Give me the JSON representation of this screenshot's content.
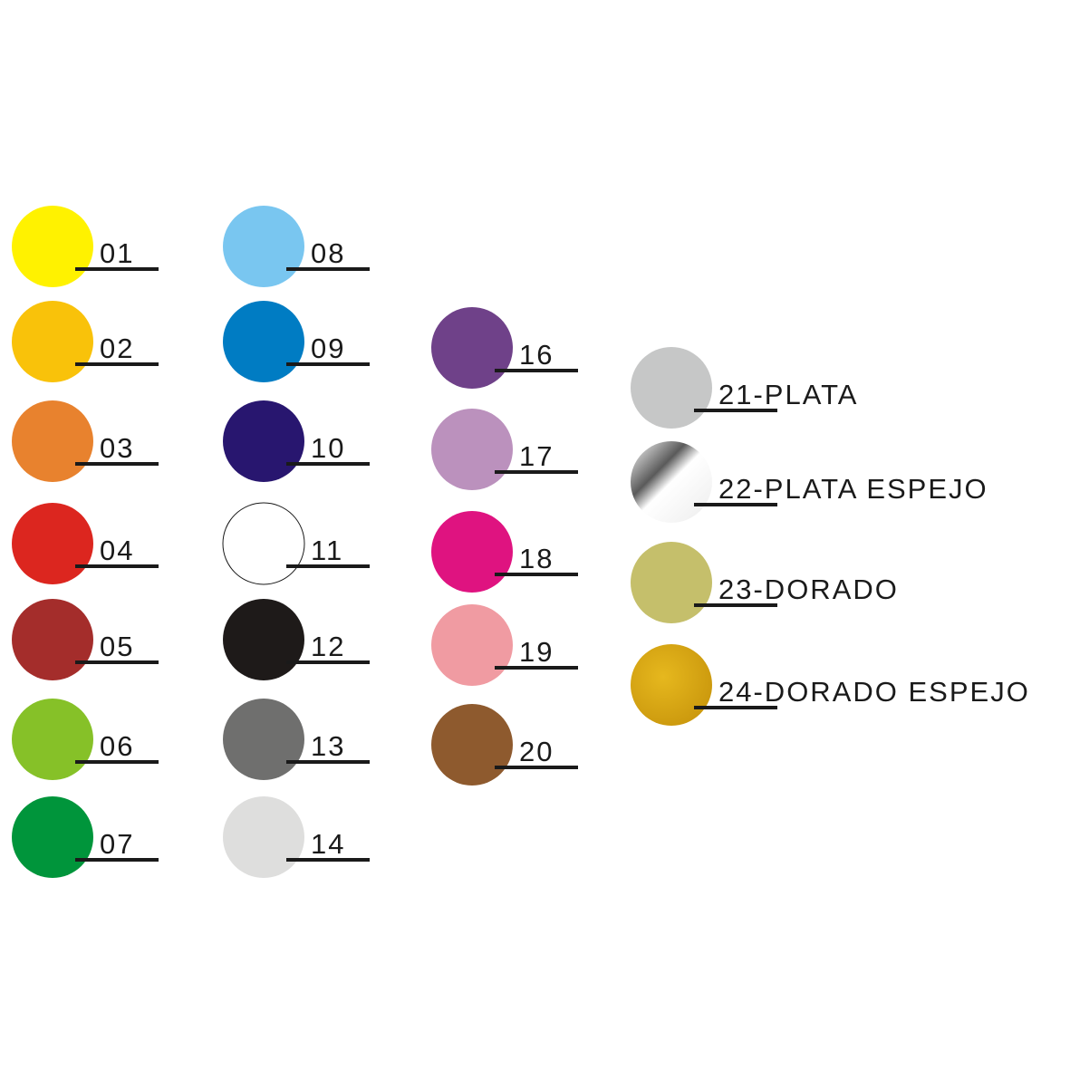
{
  "columns": [
    {
      "swatches": [
        {
          "label": "01",
          "color": "#fff200"
        },
        {
          "label": "02",
          "color": "#f9c20a"
        },
        {
          "label": "03",
          "color": "#e8822e"
        },
        {
          "label": "04",
          "color": "#dc261f"
        },
        {
          "label": "05",
          "color": "#a42d2b"
        },
        {
          "label": "06",
          "color": "#86c128"
        },
        {
          "label": "07",
          "color": "#00953b"
        }
      ]
    },
    {
      "swatches": [
        {
          "label": "08",
          "color": "#79c6f0"
        },
        {
          "label": "09",
          "color": "#007cc3"
        },
        {
          "label": "10",
          "color": "#28166f"
        },
        {
          "label": "11",
          "color": "#ffffff"
        },
        {
          "label": "12",
          "color": "#1e1a19"
        },
        {
          "label": "13",
          "color": "#6f6f6e"
        },
        {
          "label": "14",
          "color": "#dededd"
        }
      ]
    },
    {
      "swatches": [
        {
          "label": "16",
          "color": "#6f4189"
        },
        {
          "label": "17",
          "color": "#bb91bd"
        },
        {
          "label": "18",
          "color": "#df1380"
        },
        {
          "label": "19",
          "color": "#f09ba2"
        },
        {
          "label": "20",
          "color": "#8e5a2e"
        }
      ]
    },
    {
      "swatches": [
        {
          "label": "21-PLATA",
          "color": "#c6c7c7"
        },
        {
          "label": "22-PLATA ESPEJO",
          "color": "#ffffff"
        },
        {
          "label": "23-DORADO",
          "color": "#c5bf6b"
        },
        {
          "label": "24-DORADO ESPEJO",
          "color": "#dcaa14"
        }
      ]
    }
  ]
}
